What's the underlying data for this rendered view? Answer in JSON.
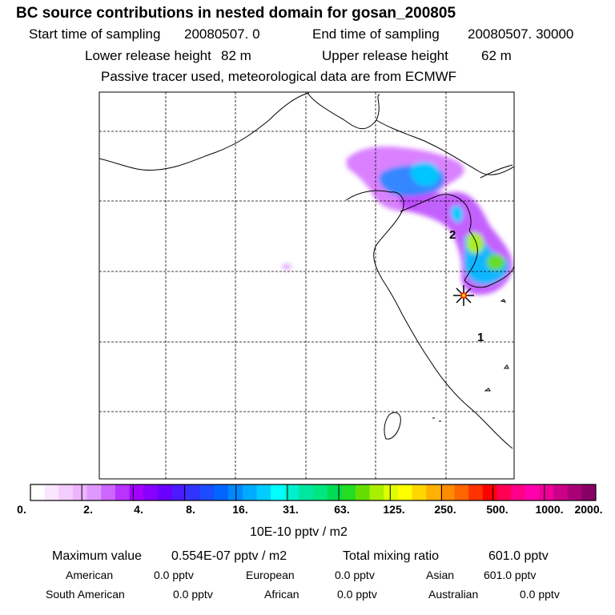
{
  "header": {
    "title": "BC  source contributions in nested domain for gosan_200805",
    "start_label": "Start time of sampling",
    "start_value": "20080507.     0",
    "end_label": "End time of sampling",
    "end_value": "20080507. 30000",
    "lower_label": "Lower release height",
    "lower_value": "82 m",
    "upper_label": "Upper release height",
    "upper_value": "62 m",
    "note": "Passive tracer used, meteorological data are from ECMWF"
  },
  "map": {
    "labels": [
      "2",
      "1"
    ],
    "receptor": "gosan"
  },
  "colorbar": {
    "ticks": [
      "0.",
      "2.",
      "4.",
      "8.",
      "16.",
      "31.",
      "63.",
      "125.",
      "250.",
      "500.",
      "1000.",
      "2000."
    ],
    "unit": "10E-10 pptv / m2",
    "colors": [
      "#ffffff",
      "#fae6ff",
      "#f5ccff",
      "#ecb3ff",
      "#dd99ff",
      "#cc66ff",
      "#b833ff",
      "#a300ff",
      "#8800ff",
      "#6a00ff",
      "#4d1aff",
      "#3333ff",
      "#1a4dff",
      "#0066ff",
      "#0088ff",
      "#00aaff",
      "#00ccff",
      "#00ffff",
      "#00f0cc",
      "#00e6a0",
      "#00e680",
      "#00dd55",
      "#22dd22",
      "#66dd00",
      "#aaee00",
      "#ddff00",
      "#ffff00",
      "#ffd700",
      "#ffb000",
      "#ff8c00",
      "#ff6600",
      "#ff3300",
      "#ff0000",
      "#ff0055",
      "#ff0088",
      "#ff00aa",
      "#ee0099",
      "#cc0088",
      "#aa0077",
      "#880066"
    ]
  },
  "footer": {
    "max_label": "Maximum value",
    "max_value": "0.554E-07 pptv / m2",
    "total_label": "Total mixing ratio",
    "total_value": "601.0 pptv",
    "regions": [
      {
        "name": "American",
        "value": "0.0 pptv"
      },
      {
        "name": "European",
        "value": "0.0 pptv"
      },
      {
        "name": "Asian",
        "value": "601.0 pptv"
      },
      {
        "name": "South American",
        "value": "0.0 pptv"
      },
      {
        "name": "African",
        "value": "0.0 pptv"
      },
      {
        "name": "Australian",
        "value": "0.0 pptv"
      }
    ]
  }
}
